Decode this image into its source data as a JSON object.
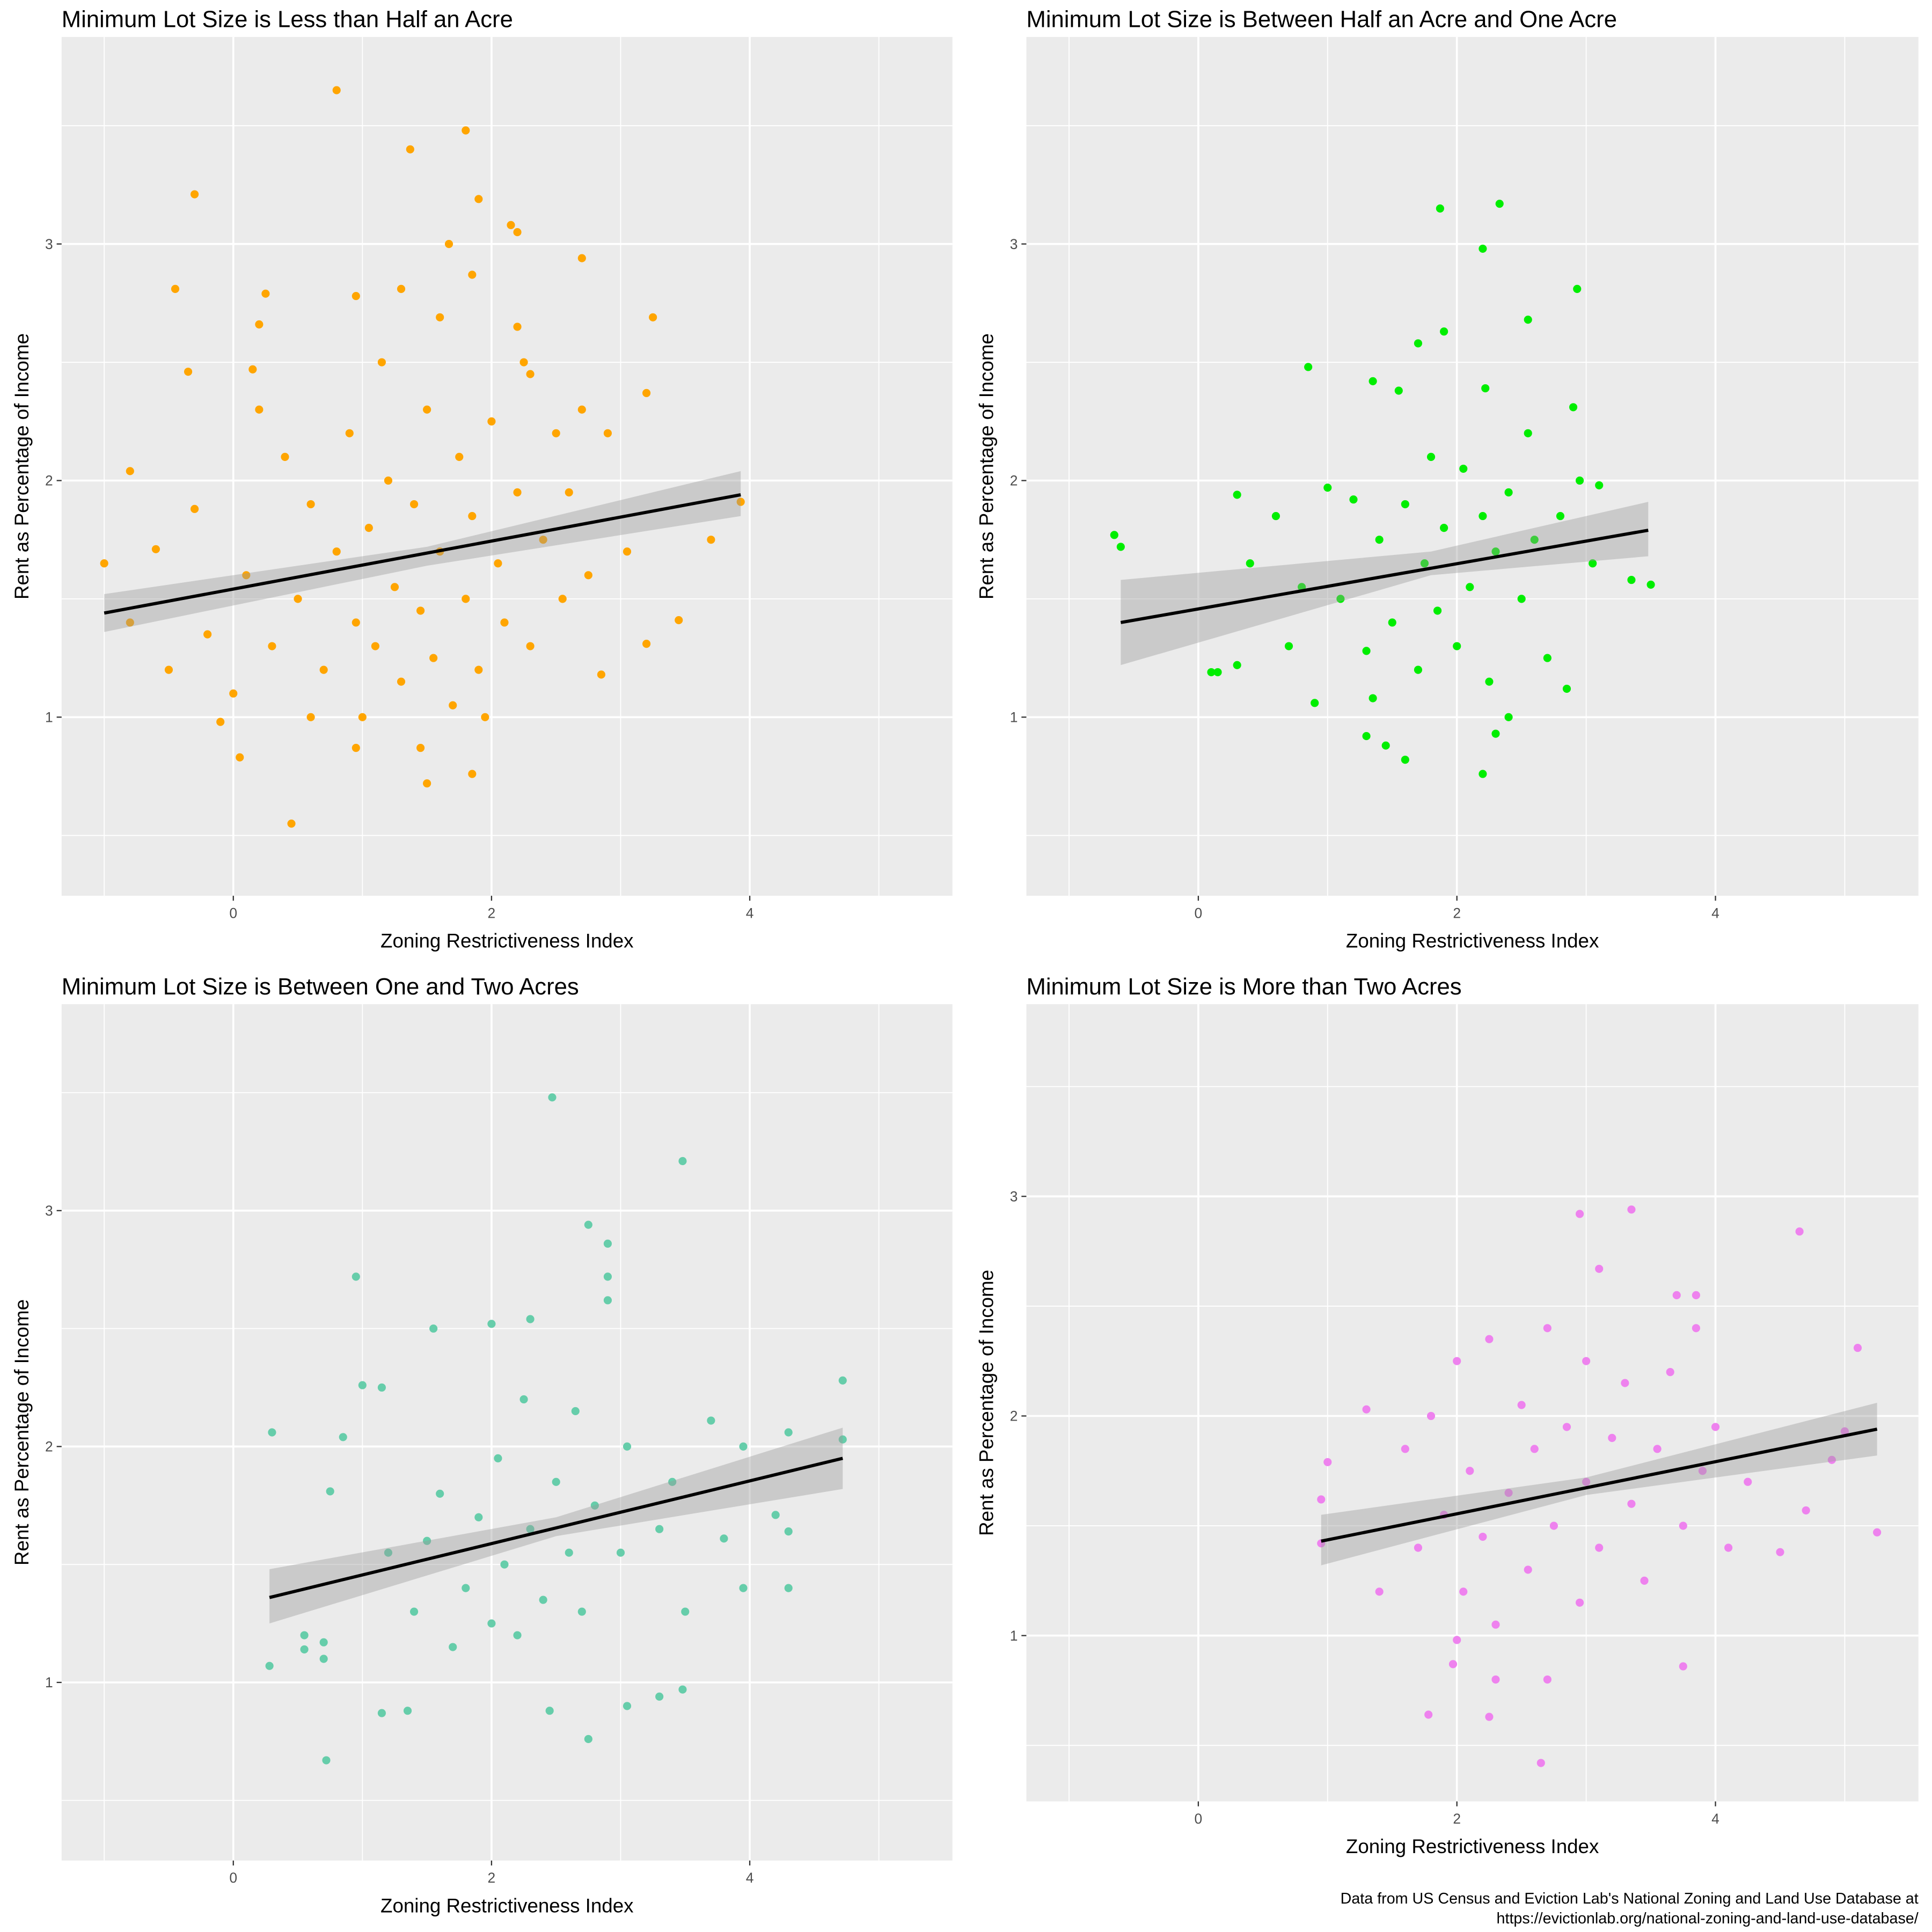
{
  "caption": [
    "Data from US Census and Eviction Lab's National Zoning and Land Use Database at",
    "https://evictionlab.org/national-zoning-and-land-use-database/"
  ],
  "chart_data": [
    {
      "type": "scatter",
      "title": "Minimum Lot Size is Less than Half an Acre",
      "xlabel": "Zoning Restrictiveness Index",
      "ylabel": "Rent as Percentage of Income",
      "xlim": [
        -1.33,
        5.57
      ],
      "ylim": [
        0.245,
        3.875
      ],
      "xticks": [
        0,
        2,
        4
      ],
      "yticks": [
        1,
        2,
        3
      ],
      "grid": true,
      "color": "#FFA500",
      "points": [
        [
          0.8,
          3.65
        ],
        [
          1.8,
          3.48
        ],
        [
          1.37,
          3.4
        ],
        [
          -0.3,
          3.21
        ],
        [
          1.9,
          3.19
        ],
        [
          2.15,
          3.08
        ],
        [
          2.2,
          3.05
        ],
        [
          1.67,
          3.0
        ],
        [
          2.7,
          2.94
        ],
        [
          -0.45,
          2.81
        ],
        [
          1.85,
          2.87
        ],
        [
          0.25,
          2.79
        ],
        [
          0.95,
          2.78
        ],
        [
          1.3,
          2.81
        ],
        [
          3.25,
          2.69
        ],
        [
          0.2,
          2.66
        ],
        [
          1.6,
          2.69
        ],
        [
          -0.35,
          2.46
        ],
        [
          0.15,
          2.47
        ],
        [
          2.2,
          2.65
        ],
        [
          3.2,
          2.37
        ],
        [
          -0.8,
          2.04
        ],
        [
          -0.3,
          1.88
        ],
        [
          -0.6,
          1.71
        ],
        [
          -1.0,
          1.65
        ],
        [
          3.93,
          1.91
        ],
        [
          3.7,
          1.75
        ],
        [
          3.45,
          1.41
        ],
        [
          3.2,
          1.31
        ],
        [
          2.85,
          1.18
        ],
        [
          3.05,
          1.7
        ],
        [
          0.05,
          0.83
        ],
        [
          0.45,
          0.55
        ],
        [
          1.85,
          0.76
        ],
        [
          1.5,
          0.72
        ],
        [
          -0.1,
          0.98
        ],
        [
          1.45,
          0.87
        ],
        [
          0.95,
          0.87
        ],
        [
          -0.8,
          1.4
        ],
        [
          -0.5,
          1.2
        ],
        [
          -0.2,
          1.35
        ],
        [
          0.0,
          1.1
        ],
        [
          0.1,
          1.6
        ],
        [
          0.3,
          1.3
        ],
        [
          0.4,
          2.1
        ],
        [
          0.5,
          1.5
        ],
        [
          0.6,
          1.9
        ],
        [
          0.7,
          1.2
        ],
        [
          0.8,
          1.7
        ],
        [
          0.9,
          2.2
        ],
        [
          0.95,
          1.4
        ],
        [
          1.0,
          1.0
        ],
        [
          1.05,
          1.8
        ],
        [
          1.1,
          1.3
        ],
        [
          1.2,
          2.0
        ],
        [
          1.25,
          1.55
        ],
        [
          1.3,
          1.15
        ],
        [
          1.4,
          1.9
        ],
        [
          1.45,
          1.45
        ],
        [
          1.5,
          2.3
        ],
        [
          1.55,
          1.25
        ],
        [
          1.6,
          1.7
        ],
        [
          1.7,
          1.05
        ],
        [
          1.75,
          2.1
        ],
        [
          1.8,
          1.5
        ],
        [
          1.85,
          1.85
        ],
        [
          1.9,
          1.2
        ],
        [
          2.0,
          2.25
        ],
        [
          2.05,
          1.65
        ],
        [
          2.1,
          1.4
        ],
        [
          2.2,
          1.95
        ],
        [
          2.25,
          2.5
        ],
        [
          2.3,
          1.3
        ],
        [
          2.4,
          1.75
        ],
        [
          2.5,
          2.2
        ],
        [
          2.55,
          1.5
        ],
        [
          2.6,
          1.95
        ],
        [
          2.7,
          2.3
        ],
        [
          2.75,
          1.6
        ],
        [
          2.9,
          2.2
        ],
        [
          0.6,
          1.0
        ],
        [
          0.2,
          2.3
        ],
        [
          1.15,
          2.5
        ],
        [
          1.95,
          1.0
        ],
        [
          2.3,
          2.45
        ]
      ],
      "fit": {
        "x": [
          -1.0,
          3.93
        ],
        "y": [
          1.44,
          1.94
        ]
      },
      "ci": {
        "x": [
          -1.0,
          1.5,
          3.93
        ],
        "lower": [
          1.36,
          1.64,
          1.85
        ],
        "upper": [
          1.52,
          1.72,
          2.04
        ]
      }
    },
    {
      "type": "scatter",
      "title": "Minimum Lot Size is Between Half an Acre and One Acre",
      "xlabel": "Zoning Restrictiveness Index",
      "ylabel": "Rent as Percentage of Income",
      "xlim": [
        -1.33,
        5.57
      ],
      "ylim": [
        0.245,
        3.875
      ],
      "xticks": [
        0,
        2,
        4
      ],
      "yticks": [
        1,
        2,
        3
      ],
      "grid": true,
      "color": "#00EE00",
      "points": [
        [
          -0.65,
          1.77
        ],
        [
          -0.6,
          1.72
        ],
        [
          0.1,
          1.19
        ],
        [
          0.15,
          1.19
        ],
        [
          0.3,
          1.22
        ],
        [
          0.3,
          1.94
        ],
        [
          0.4,
          1.65
        ],
        [
          0.85,
          2.48
        ],
        [
          1.87,
          3.15
        ],
        [
          2.33,
          3.17
        ],
        [
          2.2,
          2.98
        ],
        [
          2.93,
          2.81
        ],
        [
          2.55,
          2.68
        ],
        [
          1.9,
          2.63
        ],
        [
          1.7,
          2.58
        ],
        [
          1.35,
          2.42
        ],
        [
          1.55,
          2.38
        ],
        [
          2.22,
          2.39
        ],
        [
          2.9,
          2.31
        ],
        [
          3.1,
          1.98
        ],
        [
          3.05,
          1.65
        ],
        [
          3.35,
          1.58
        ],
        [
          3.5,
          1.56
        ],
        [
          2.2,
          0.76
        ],
        [
          1.6,
          0.82
        ],
        [
          1.45,
          0.88
        ],
        [
          2.3,
          0.93
        ],
        [
          1.3,
          0.92
        ],
        [
          2.85,
          1.12
        ],
        [
          2.4,
          1.0
        ],
        [
          0.7,
          1.3
        ],
        [
          0.9,
          1.06
        ],
        [
          1.0,
          1.97
        ],
        [
          1.2,
          1.92
        ],
        [
          0.6,
          1.85
        ],
        [
          0.8,
          1.55
        ],
        [
          1.1,
          1.5
        ],
        [
          1.3,
          1.28
        ],
        [
          1.4,
          1.75
        ],
        [
          1.5,
          1.4
        ],
        [
          1.6,
          1.9
        ],
        [
          1.7,
          1.2
        ],
        [
          1.75,
          1.65
        ],
        [
          1.8,
          2.1
        ],
        [
          1.85,
          1.45
        ],
        [
          1.9,
          1.8
        ],
        [
          2.0,
          1.3
        ],
        [
          2.05,
          2.05
        ],
        [
          2.1,
          1.55
        ],
        [
          2.2,
          1.85
        ],
        [
          2.25,
          1.15
        ],
        [
          2.3,
          1.7
        ],
        [
          2.4,
          1.95
        ],
        [
          2.5,
          1.5
        ],
        [
          2.55,
          2.2
        ],
        [
          2.6,
          1.75
        ],
        [
          2.7,
          1.25
        ],
        [
          2.8,
          1.85
        ],
        [
          2.95,
          2.0
        ],
        [
          1.35,
          1.08
        ]
      ],
      "fit": {
        "x": [
          -0.6,
          3.48
        ],
        "y": [
          1.4,
          1.79
        ]
      },
      "ci": {
        "x": [
          -0.6,
          1.8,
          3.48
        ],
        "lower": [
          1.22,
          1.6,
          1.68
        ],
        "upper": [
          1.58,
          1.7,
          1.91
        ]
      }
    },
    {
      "type": "scatter",
      "title": "Minimum Lot Size is Between One and Two Acres",
      "xlabel": "Zoning Restrictiveness Index",
      "ylabel": "Rent as Percentage of Income",
      "xlim": [
        -1.33,
        5.57
      ],
      "ylim": [
        0.245,
        3.875
      ],
      "xticks": [
        0,
        2,
        4
      ],
      "yticks": [
        1,
        2,
        3
      ],
      "grid": true,
      "color": "#66CDAA",
      "points": [
        [
          2.47,
          3.48
        ],
        [
          3.48,
          3.21
        ],
        [
          2.75,
          2.94
        ],
        [
          2.9,
          2.86
        ],
        [
          2.9,
          2.72
        ],
        [
          2.9,
          2.62
        ],
        [
          0.95,
          2.72
        ],
        [
          2.3,
          2.54
        ],
        [
          1.55,
          2.5
        ],
        [
          2.0,
          2.52
        ],
        [
          0.3,
          2.06
        ],
        [
          1.0,
          2.26
        ],
        [
          1.15,
          2.25
        ],
        [
          0.85,
          2.04
        ],
        [
          0.75,
          1.81
        ],
        [
          0.55,
          1.2
        ],
        [
          0.55,
          1.14
        ],
        [
          0.7,
          1.17
        ],
        [
          0.7,
          1.1
        ],
        [
          0.28,
          1.07
        ],
        [
          0.72,
          0.67
        ],
        [
          1.15,
          0.87
        ],
        [
          1.35,
          0.88
        ],
        [
          2.75,
          0.76
        ],
        [
          2.45,
          0.88
        ],
        [
          3.05,
          0.9
        ],
        [
          3.3,
          0.94
        ],
        [
          3.48,
          0.97
        ],
        [
          3.95,
          1.4
        ],
        [
          4.3,
          1.4
        ],
        [
          4.3,
          1.64
        ],
        [
          4.2,
          1.71
        ],
        [
          4.3,
          2.06
        ],
        [
          4.72,
          2.03
        ],
        [
          4.72,
          2.28
        ],
        [
          3.7,
          2.11
        ],
        [
          3.95,
          2.0
        ],
        [
          3.8,
          1.61
        ],
        [
          1.2,
          1.55
        ],
        [
          1.4,
          1.3
        ],
        [
          1.5,
          1.6
        ],
        [
          1.6,
          1.8
        ],
        [
          1.7,
          1.15
        ],
        [
          1.8,
          1.4
        ],
        [
          1.9,
          1.7
        ],
        [
          2.0,
          1.25
        ],
        [
          2.05,
          1.95
        ],
        [
          2.1,
          1.5
        ],
        [
          2.2,
          1.2
        ],
        [
          2.25,
          2.2
        ],
        [
          2.3,
          1.65
        ],
        [
          2.4,
          1.35
        ],
        [
          2.5,
          1.85
        ],
        [
          2.6,
          1.55
        ],
        [
          2.65,
          2.15
        ],
        [
          2.7,
          1.3
        ],
        [
          2.8,
          1.75
        ],
        [
          3.0,
          1.55
        ],
        [
          3.05,
          2.0
        ],
        [
          3.3,
          1.65
        ],
        [
          3.4,
          1.85
        ],
        [
          3.5,
          1.3
        ]
      ],
      "fit": {
        "x": [
          0.28,
          4.72
        ],
        "y": [
          1.36,
          1.95
        ]
      },
      "ci": {
        "x": [
          0.28,
          2.5,
          4.72
        ],
        "lower": [
          1.25,
          1.62,
          1.82
        ],
        "upper": [
          1.48,
          1.7,
          2.08
        ]
      }
    },
    {
      "type": "scatter",
      "title": "Minimum Lot Size is More than Two Acres",
      "xlabel": "Zoning Restrictiveness Index",
      "ylabel": "Rent as Percentage of Income",
      "xlim": [
        -1.33,
        5.57
      ],
      "ylim": [
        0.245,
        3.875
      ],
      "xticks": [
        0,
        2,
        4
      ],
      "yticks": [
        1,
        2,
        3
      ],
      "grid": true,
      "color": "#EE82EE",
      "points": [
        [
          2.65,
          0.42
        ],
        [
          2.25,
          0.63
        ],
        [
          1.78,
          0.64
        ],
        [
          2.3,
          0.8
        ],
        [
          2.7,
          0.8
        ],
        [
          3.75,
          0.86
        ],
        [
          1.97,
          0.87
        ],
        [
          2.0,
          0.98
        ],
        [
          2.95,
          2.92
        ],
        [
          3.35,
          2.94
        ],
        [
          3.1,
          2.67
        ],
        [
          4.65,
          2.84
        ],
        [
          5.1,
          2.31
        ],
        [
          5.25,
          1.47
        ],
        [
          4.5,
          1.38
        ],
        [
          4.9,
          1.8
        ],
        [
          5.0,
          1.93
        ],
        [
          4.7,
          1.57
        ],
        [
          0.95,
          1.42
        ],
        [
          0.95,
          1.62
        ],
        [
          1.0,
          1.79
        ],
        [
          1.3,
          2.03
        ],
        [
          1.4,
          1.2
        ],
        [
          1.6,
          1.85
        ],
        [
          1.7,
          1.4
        ],
        [
          1.8,
          2.0
        ],
        [
          1.9,
          1.55
        ],
        [
          2.0,
          2.25
        ],
        [
          2.05,
          1.2
        ],
        [
          2.1,
          1.75
        ],
        [
          2.2,
          1.45
        ],
        [
          2.25,
          2.35
        ],
        [
          2.3,
          1.05
        ],
        [
          2.4,
          1.65
        ],
        [
          2.5,
          2.05
        ],
        [
          2.55,
          1.3
        ],
        [
          2.6,
          1.85
        ],
        [
          2.7,
          2.4
        ],
        [
          2.75,
          1.5
        ],
        [
          2.85,
          1.95
        ],
        [
          2.95,
          1.15
        ],
        [
          3.0,
          1.7
        ],
        [
          3.0,
          2.25
        ],
        [
          3.1,
          1.4
        ],
        [
          3.2,
          1.9
        ],
        [
          3.3,
          2.15
        ],
        [
          3.35,
          1.6
        ],
        [
          3.45,
          1.25
        ],
        [
          3.55,
          1.85
        ],
        [
          3.65,
          2.2
        ],
        [
          3.75,
          1.5
        ],
        [
          3.85,
          2.4
        ],
        [
          3.9,
          1.75
        ],
        [
          4.0,
          1.95
        ],
        [
          4.1,
          1.4
        ],
        [
          4.25,
          1.7
        ],
        [
          3.7,
          2.55
        ],
        [
          3.85,
          2.55
        ]
      ],
      "fit": {
        "x": [
          0.95,
          5.25
        ],
        "y": [
          1.43,
          1.94
        ]
      },
      "ci": {
        "x": [
          0.95,
          3.0,
          5.25
        ],
        "lower": [
          1.32,
          1.64,
          1.82
        ],
        "upper": [
          1.55,
          1.72,
          2.06
        ]
      }
    }
  ]
}
